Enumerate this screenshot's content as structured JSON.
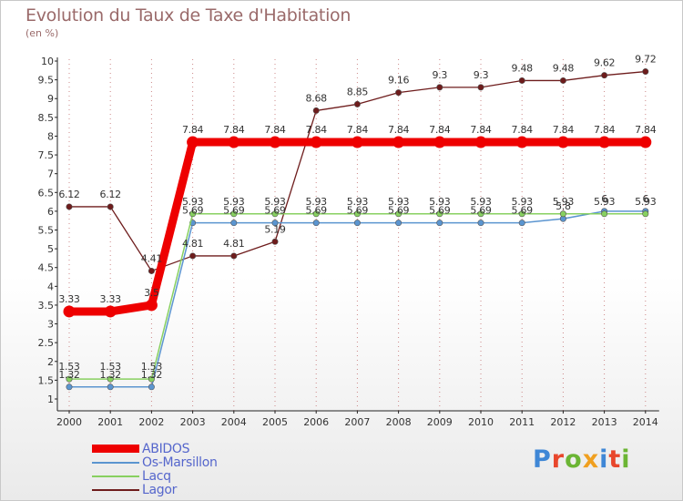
{
  "title": "Evolution du Taux de Taxe d'Habitation",
  "subtitle": "(en %)",
  "logo_text": "Proxiti",
  "logo_colors": [
    "#3f87d6",
    "#e8472c",
    "#6bb534",
    "#f0a020",
    "#3f87d6",
    "#e8472c",
    "#6bb534"
  ],
  "colors": {
    "axis": "#222222",
    "label": "#333333",
    "grid": "#cc8888"
  },
  "chart_data": {
    "type": "line",
    "x": [
      "2000",
      "2001",
      "2002",
      "2003",
      "2004",
      "2005",
      "2006",
      "2007",
      "2008",
      "2009",
      "2010",
      "2011",
      "2012",
      "2013",
      "2014"
    ],
    "ylim": [
      1,
      10
    ],
    "yticks": [
      "1",
      "1.5",
      "2",
      "2.5",
      "3",
      "3.5",
      "4",
      "4.5",
      "5",
      "5.5",
      "6",
      "6.5",
      "7",
      "7.5",
      "8",
      "8.5",
      "9",
      "9.5",
      "10"
    ],
    "legend_position": "bottom-left",
    "series": [
      {
        "name": "ABIDOS",
        "color": "#ee0000",
        "width": 9,
        "marker": 6.5,
        "values": [
          3.33,
          3.33,
          3.5,
          7.84,
          7.84,
          7.84,
          7.84,
          7.84,
          7.84,
          7.84,
          7.84,
          7.84,
          7.84,
          7.84,
          7.84
        ],
        "labels": [
          "3.33",
          "3.33",
          "3.5",
          "7.84",
          "7.84",
          "7.84",
          "7.84",
          "7.84",
          "7.84",
          "7.84",
          "7.84",
          "7.84",
          "7.84",
          "7.84",
          "7.84"
        ]
      },
      {
        "name": "Os-Marsillon",
        "color": "#5b95d0",
        "width": 1.5,
        "marker": 3.2,
        "values": [
          1.32,
          1.32,
          1.32,
          5.69,
          5.69,
          5.69,
          5.69,
          5.69,
          5.69,
          5.69,
          5.69,
          5.69,
          5.8,
          6,
          6
        ],
        "labels": [
          "1.32",
          "1.32",
          "1.32",
          "5.69",
          "5.69",
          "5.69",
          "5.69",
          "5.69",
          "5.69",
          "5.69",
          "5.69",
          "5.69",
          "5.8",
          "6",
          "6"
        ]
      },
      {
        "name": "Lacq",
        "color": "#88d060",
        "width": 1.5,
        "marker": 3.2,
        "values": [
          1.53,
          1.53,
          1.53,
          5.93,
          5.93,
          5.93,
          5.93,
          5.93,
          5.93,
          5.93,
          5.93,
          5.93,
          5.93,
          5.93,
          5.93
        ],
        "labels": [
          "1.53",
          "1.53",
          "1.53",
          "5.93",
          "5.93",
          "5.93",
          "5.93",
          "5.93",
          "5.93",
          "5.93",
          "5.93",
          "5.93",
          "5.93",
          "5.93",
          "5.93"
        ]
      },
      {
        "name": "Lagor",
        "color": "#6e1c1c",
        "width": 1.3,
        "marker": 3.2,
        "values": [
          6.12,
          6.12,
          4.41,
          4.81,
          4.81,
          5.19,
          8.68,
          8.85,
          9.16,
          9.3,
          9.3,
          9.48,
          9.48,
          9.62,
          9.72
        ],
        "labels": [
          "6.12",
          "6.12",
          "4.41",
          "4.81",
          "4.81",
          "5.19",
          "8.68",
          "8.85",
          "9.16",
          "9.3",
          "9.3",
          "9.48",
          "9.48",
          "9.62",
          "9.72"
        ]
      }
    ]
  }
}
